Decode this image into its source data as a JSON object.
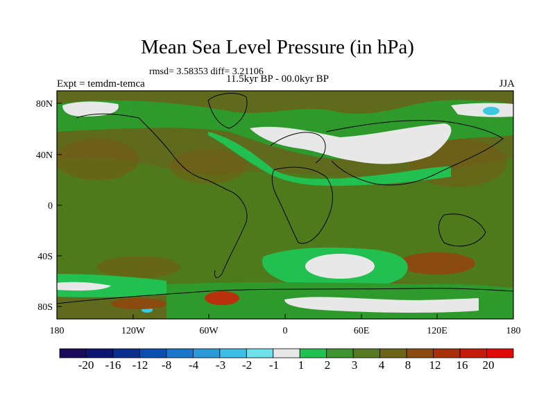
{
  "title": "Mean Sea Level Pressure (in hPa)",
  "stats": "rmsd= 3.58353 diff= 3.21106",
  "subtitle": "11.5kyr BP - 00.0kyr BP",
  "left_string": "Expt = temdm-temca",
  "right_string": "JJA",
  "x_ticks": [
    "180",
    "120W",
    "60W",
    "0",
    "60E",
    "120E",
    "180"
  ],
  "y_ticks": [
    "80N",
    "40N",
    "0",
    "40S",
    "80S"
  ],
  "colorbar": {
    "labels": [
      "-20",
      "-16",
      "-12",
      "-8",
      "-4",
      "-3",
      "-2",
      "-1",
      "1",
      "2",
      "3",
      "4",
      "8",
      "12",
      "16",
      "20"
    ],
    "colors": [
      "#1a0a5a",
      "#0c1670",
      "#0b2f8c",
      "#0a4fb0",
      "#1976c8",
      "#2a9ad8",
      "#3cbfe6",
      "#6ee0ea",
      "#e8e8e8",
      "#22c050",
      "#3e9430",
      "#557a22",
      "#6e6418",
      "#8a4a10",
      "#a8300a",
      "#c41c08",
      "#e00a06"
    ]
  },
  "map_colors": {
    "dark_olive": "#5f6a1d",
    "olive": "#4f7a1c",
    "green": "#2f9a2c",
    "bright_green": "#22c050",
    "brown": "#8a4a10",
    "red": "#b8300c",
    "white": "#e8e8e8",
    "cyan": "#3cc8e0"
  }
}
